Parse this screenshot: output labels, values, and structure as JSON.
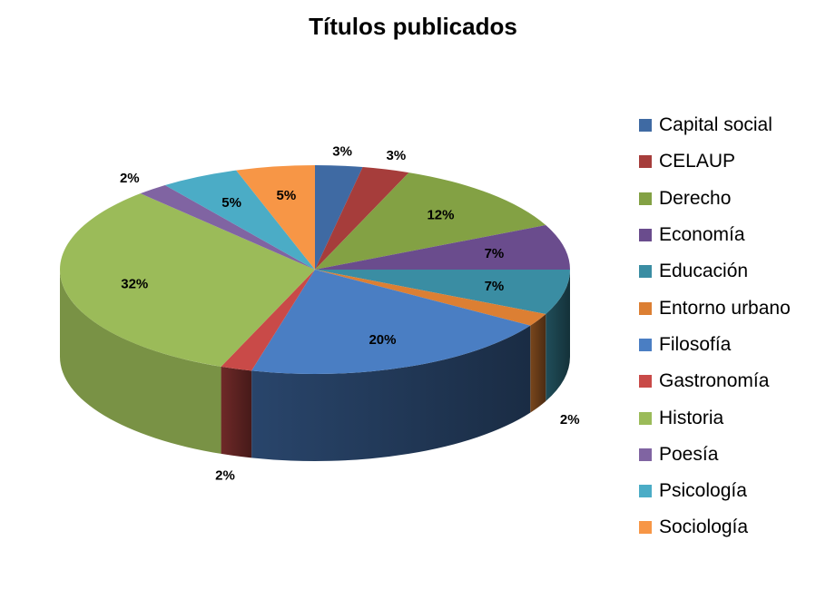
{
  "chart_data": {
    "type": "pie",
    "title": "Títulos publicados",
    "legend_position": "right",
    "categories": [
      "Capital social",
      "CELAUP",
      "Derecho",
      "Economía",
      "Educación",
      "Entorno urbano",
      "Filosofía",
      "Gastronomía",
      "Historia",
      "Poesía",
      "Psicología",
      "Sociología"
    ],
    "values": [
      3,
      3,
      12,
      7,
      7,
      2,
      20,
      2,
      32,
      2,
      5,
      5
    ],
    "labels": [
      "3%",
      "3%",
      "12%",
      "7%",
      "7%",
      "2%",
      "20%",
      "2%",
      "32%",
      "2%",
      "5%",
      "5%"
    ],
    "colors": [
      "#3F6AA3",
      "#A63D3B",
      "#83A144",
      "#6A4C8D",
      "#3A8DA3",
      "#DC7F33",
      "#4A7EC3",
      "#C94A48",
      "#9BBB59",
      "#8064A2",
      "#4BACC6",
      "#F79646"
    ]
  }
}
